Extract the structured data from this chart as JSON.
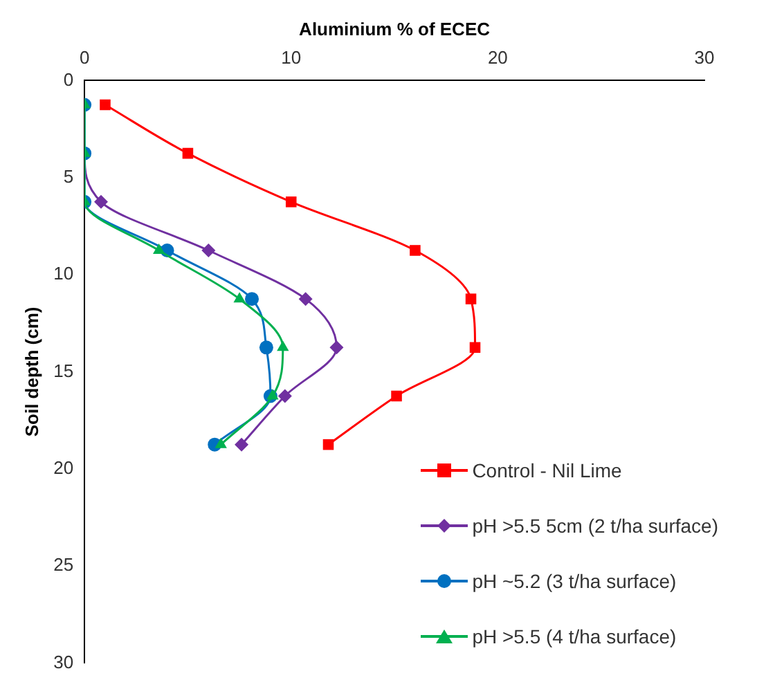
{
  "chart_data": {
    "type": "line",
    "xlabel": "Aluminium % of ECEC",
    "ylabel": "Soil depth (cm)",
    "xlim": [
      0,
      30
    ],
    "xticks": [
      0,
      10,
      20,
      30
    ],
    "ylim": [
      30,
      0
    ],
    "yticks": [
      0,
      5,
      10,
      15,
      20,
      25,
      30
    ],
    "grid": false,
    "legend": "bottom right",
    "line_style": "solid",
    "series": [
      {
        "name": "Control - Nil Lime",
        "color": "#ff0000",
        "marker": "square",
        "x": [
          1,
          5,
          10,
          16,
          18.7,
          18.9,
          15.1,
          11.8
        ],
        "values": [
          1.25,
          3.75,
          6.25,
          8.75,
          11.25,
          13.75,
          16.25,
          18.75
        ]
      },
      {
        "name": "pH >5.5 5cm (2 t/ha surface)",
        "color": "#7030a0",
        "marker": "diamond",
        "x": [
          0,
          0,
          0.8,
          6,
          10.7,
          12.2,
          9.7,
          7.6
        ],
        "values": [
          1.25,
          3.75,
          6.25,
          8.75,
          11.25,
          13.75,
          16.25,
          18.75
        ]
      },
      {
        "name": "pH ~5.2 (3 t/ha surface)",
        "color": "#0070c0",
        "marker": "circle",
        "x": [
          0,
          0,
          0,
          4,
          8.1,
          8.8,
          9,
          6.3
        ],
        "values": [
          1.25,
          3.75,
          6.25,
          8.75,
          11.25,
          13.75,
          16.25,
          18.75
        ]
      },
      {
        "name": "pH >5.5 (4 t/ha surface)",
        "color": "#00b050",
        "marker": "triangle",
        "x": [
          0,
          0,
          0,
          3.6,
          7.5,
          9.6,
          9.1,
          6.6
        ],
        "values": [
          1.25,
          3.75,
          6.25,
          8.75,
          11.25,
          13.75,
          16.25,
          18.75
        ]
      }
    ]
  }
}
